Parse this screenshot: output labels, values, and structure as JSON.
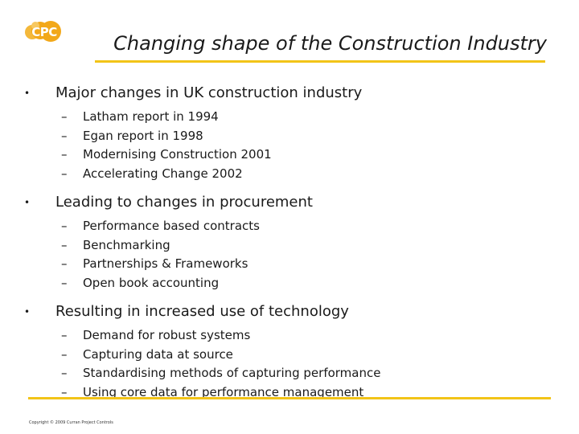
{
  "logo": {
    "text": "CPC",
    "color": "#f2a81a"
  },
  "title": "Changing shape of the Construction Industry",
  "bullet_glyph": "•",
  "dash_glyph": "–",
  "sections": [
    {
      "heading": "Major changes in UK construction industry",
      "items": [
        "Latham report in 1994",
        "Egan report in 1998",
        "Modernising Construction 2001",
        "Accelerating Change 2002"
      ]
    },
    {
      "heading": "Leading to changes in procurement",
      "items": [
        "Performance based contracts",
        "Benchmarking",
        "Partnerships & Frameworks",
        "Open book accounting"
      ]
    },
    {
      "heading": "Resulting in increased use of technology",
      "items": [
        "Demand for robust systems",
        "Capturing data at source",
        "Standardising methods of capturing performance",
        "Using core data for performance management"
      ]
    }
  ],
  "footer": "Copyright © 2009 Curran Project Controls",
  "colors": {
    "accent": "#f2c418",
    "text": "#1a1a1a"
  }
}
